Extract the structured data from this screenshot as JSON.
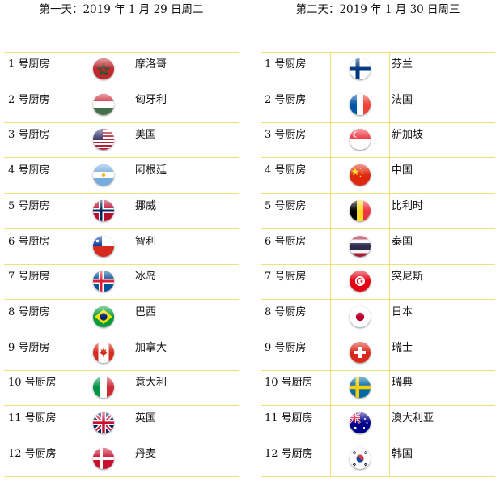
{
  "day1": {
    "title": "第一天：2019 年 1 月 29 日周二",
    "rows": [
      {
        "kitchen": "1 号厨房",
        "country": "摩洛哥",
        "flag": "morocco-flag-icon"
      },
      {
        "kitchen": "2 号厨房",
        "country": "匈牙利",
        "flag": "hungary-flag-icon"
      },
      {
        "kitchen": "3 号厨房",
        "country": "美国",
        "flag": "usa-flag-icon"
      },
      {
        "kitchen": "4 号厨房",
        "country": "阿根廷",
        "flag": "argentina-flag-icon"
      },
      {
        "kitchen": "5 号厨房",
        "country": "挪威",
        "flag": "norway-flag-icon"
      },
      {
        "kitchen": "6 号厨房",
        "country": "智利",
        "flag": "chile-flag-icon"
      },
      {
        "kitchen": "7 号厨房",
        "country": "冰岛",
        "flag": "iceland-flag-icon"
      },
      {
        "kitchen": "8 号厨房",
        "country": "巴西",
        "flag": "brazil-flag-icon"
      },
      {
        "kitchen": "9 号厨房",
        "country": "加拿大",
        "flag": "canada-flag-icon"
      },
      {
        "kitchen": "10 号厨房",
        "country": "意大利",
        "flag": "italy-flag-icon"
      },
      {
        "kitchen": "11 号厨房",
        "country": "英国",
        "flag": "uk-flag-icon"
      },
      {
        "kitchen": "12 号厨房",
        "country": "丹麦",
        "flag": "denmark-flag-icon"
      }
    ]
  },
  "day2": {
    "title": "第二天：2019 年 1 月 30 日周三",
    "rows": [
      {
        "kitchen": "1 号厨房",
        "country": "芬兰",
        "flag": "finland-flag-icon"
      },
      {
        "kitchen": "2 号厨房",
        "country": "法国",
        "flag": "france-flag-icon"
      },
      {
        "kitchen": "3 号厨房",
        "country": "新加坡",
        "flag": "singapore-flag-icon"
      },
      {
        "kitchen": "4 号厨房",
        "country": "中国",
        "flag": "china-flag-icon"
      },
      {
        "kitchen": "5 号厨房",
        "country": "比利时",
        "flag": "belgium-flag-icon"
      },
      {
        "kitchen": "6 号厨房",
        "country": "泰国",
        "flag": "thailand-flag-icon"
      },
      {
        "kitchen": "7 号厨房",
        "country": "突尼斯",
        "flag": "tunisia-flag-icon"
      },
      {
        "kitchen": "8 号厨房",
        "country": "日本",
        "flag": "japan-flag-icon"
      },
      {
        "kitchen": "9 号厨房",
        "country": "瑞士",
        "flag": "switzerland-flag-icon"
      },
      {
        "kitchen": "10 号厨房",
        "country": "瑞典",
        "flag": "sweden-flag-icon"
      },
      {
        "kitchen": "11 号厨房",
        "country": "澳大利亚",
        "flag": "australia-flag-icon"
      },
      {
        "kitchen": "12 号厨房",
        "country": "韩国",
        "flag": "south-korea-flag-icon"
      }
    ]
  },
  "colors": {
    "row_border": "#f2de7a"
  }
}
